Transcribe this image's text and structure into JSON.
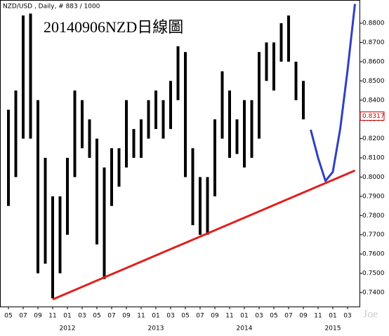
{
  "chart_data": {
    "type": "range_bar",
    "header": "NZD/USD , Daily, # 883 / 1000",
    "title": "20140906NZD日線圖",
    "watermark": "Joe",
    "color": "#000000",
    "x": [
      "2011-05",
      "2011-06",
      "2011-07",
      "2011-08",
      "2011-09",
      "2011-10",
      "2011-11",
      "2011-12",
      "2012-01",
      "2012-02",
      "2012-03",
      "2012-04",
      "2012-05",
      "2012-06",
      "2012-07",
      "2012-08",
      "2012-09",
      "2012-10",
      "2012-11",
      "2012-12",
      "2013-01",
      "2013-02",
      "2013-03",
      "2013-04",
      "2013-05",
      "2013-06",
      "2013-07",
      "2013-08",
      "2013-09",
      "2013-10",
      "2013-11",
      "2013-12",
      "2014-01",
      "2014-02",
      "2014-03",
      "2014-04",
      "2014-05",
      "2014-06",
      "2014-07",
      "2014-08",
      "2014-09"
    ],
    "high": [
      0.835,
      0.845,
      0.884,
      0.885,
      0.84,
      0.81,
      0.79,
      0.79,
      0.81,
      0.845,
      0.84,
      0.83,
      0.82,
      0.805,
      0.815,
      0.815,
      0.84,
      0.825,
      0.83,
      0.84,
      0.845,
      0.84,
      0.85,
      0.868,
      0.865,
      0.815,
      0.8,
      0.8,
      0.83,
      0.855,
      0.845,
      0.83,
      0.84,
      0.84,
      0.865,
      0.87,
      0.87,
      0.88,
      0.884,
      0.86,
      0.85
    ],
    "low": [
      0.785,
      0.8,
      0.82,
      0.82,
      0.75,
      0.755,
      0.737,
      0.75,
      0.77,
      0.8,
      0.815,
      0.81,
      0.765,
      0.747,
      0.785,
      0.795,
      0.805,
      0.81,
      0.81,
      0.82,
      0.825,
      0.82,
      0.825,
      0.84,
      0.8,
      0.775,
      0.77,
      0.77,
      0.79,
      0.82,
      0.81,
      0.812,
      0.805,
      0.81,
      0.82,
      0.85,
      0.845,
      0.86,
      0.86,
      0.84,
      0.83
    ],
    "last_value": 0.8317,
    "annotations": [
      {
        "color": "#e02020",
        "x": [
          "2011-11",
          "2015-04"
        ],
        "values": [
          0.7364,
          0.8034
        ]
      },
      {
        "color": "#3040c0",
        "x": [
          "2014-10",
          "2014-11",
          "2014-12",
          "2015-01",
          "2015-02",
          "2015-03",
          "2015-04"
        ],
        "values": [
          0.8246,
          0.81,
          0.798,
          0.8027,
          0.825,
          0.8556,
          0.89
        ]
      }
    ],
    "ylim": [
      0.7327,
      0.8906
    ],
    "yticks": [
      {
        "value": 0.74,
        "label": "0.7400"
      },
      {
        "value": 0.75,
        "label": "0.7500"
      },
      {
        "value": 0.76,
        "label": "0.7600"
      },
      {
        "value": 0.77,
        "label": "0.7700"
      },
      {
        "value": 0.78,
        "label": "0.7800"
      },
      {
        "value": 0.79,
        "label": "0.7900"
      },
      {
        "value": 0.8,
        "label": "0.8000"
      },
      {
        "value": 0.81,
        "label": "0.8100"
      },
      {
        "value": 0.82,
        "label": "0.8200"
      },
      {
        "value": 0.83,
        "label": "0.8300"
      },
      {
        "value": 0.84,
        "label": "0.8400"
      },
      {
        "value": 0.85,
        "label": "0.8500"
      },
      {
        "value": 0.86,
        "label": "0.8600"
      },
      {
        "value": 0.87,
        "label": "0.8700"
      },
      {
        "value": 0.88,
        "label": "0.8800"
      }
    ],
    "xticks": [
      {
        "value": "2011-05",
        "label": "05"
      },
      {
        "value": "2011-07",
        "label": "07"
      },
      {
        "value": "2011-09",
        "label": "09"
      },
      {
        "value": "2011-11",
        "label": "11"
      },
      {
        "value": "2012-01",
        "label": "01"
      },
      {
        "value": "2012-03",
        "label": "03"
      },
      {
        "value": "2012-05",
        "label": "05"
      },
      {
        "value": "2012-07",
        "label": "07"
      },
      {
        "value": "2012-09",
        "label": "09"
      },
      {
        "value": "2012-11",
        "label": "11"
      },
      {
        "value": "2013-01",
        "label": "01"
      },
      {
        "value": "2013-03",
        "label": "03"
      },
      {
        "value": "2013-05",
        "label": "05"
      },
      {
        "value": "2013-07",
        "label": "07"
      },
      {
        "value": "2013-09",
        "label": "09"
      },
      {
        "value": "2013-11",
        "label": "11"
      },
      {
        "value": "2014-01",
        "label": "01"
      },
      {
        "value": "2014-03",
        "label": "03"
      },
      {
        "value": "2014-05",
        "label": "05"
      },
      {
        "value": "2014-07",
        "label": "07"
      },
      {
        "value": "2014-09",
        "label": "09"
      },
      {
        "value": "2014-11",
        "label": "11"
      },
      {
        "value": "2015-01",
        "label": "01"
      },
      {
        "value": "2015-03",
        "label": "03"
      }
    ],
    "year_labels": [
      {
        "value": "2012-01",
        "label": "2012"
      },
      {
        "value": "2013-01",
        "label": "2013"
      },
      {
        "value": "2014-01",
        "label": "2014"
      },
      {
        "value": "2015-01",
        "label": "2015"
      }
    ]
  }
}
